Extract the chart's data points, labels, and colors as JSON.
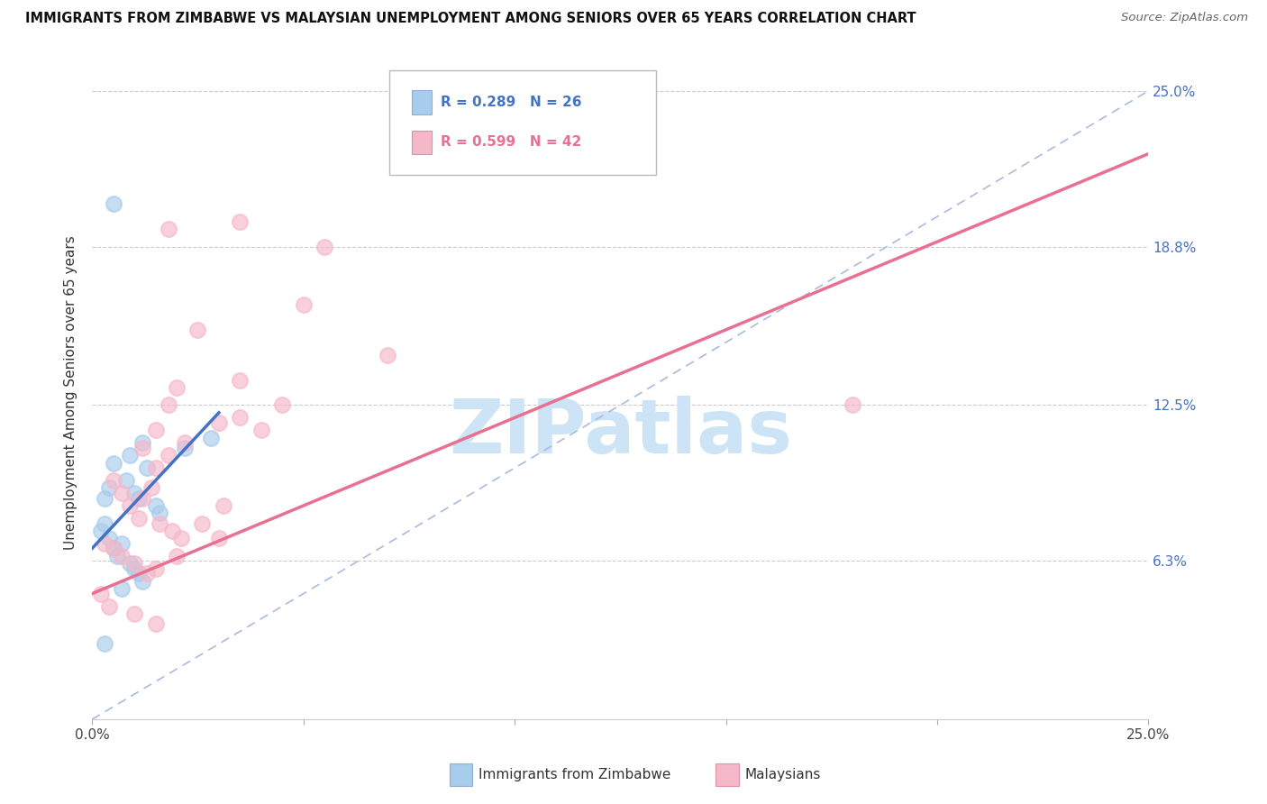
{
  "title": "IMMIGRANTS FROM ZIMBABWE VS MALAYSIAN UNEMPLOYMENT AMONG SENIORS OVER 65 YEARS CORRELATION CHART",
  "source": "Source: ZipAtlas.com",
  "ylabel": "Unemployment Among Seniors over 65 years",
  "ytick_labels": [
    "6.3%",
    "12.5%",
    "18.8%",
    "25.0%"
  ],
  "ytick_values": [
    6.3,
    12.5,
    18.8,
    25.0
  ],
  "legend_label1": "Immigrants from Zimbabwe",
  "legend_label2": "Malaysians",
  "color_blue": "#a8cceb",
  "color_pink": "#f5b8c8",
  "color_blue_line": "#4472c4",
  "color_pink_line": "#e87090",
  "color_diag_line": "#aabbdd",
  "xlim": [
    0,
    25
  ],
  "ylim": [
    0,
    26
  ],
  "blue_points": [
    [
      0.5,
      20.5
    ],
    [
      0.9,
      10.5
    ],
    [
      1.2,
      11.0
    ],
    [
      0.5,
      10.2
    ],
    [
      0.4,
      9.2
    ],
    [
      0.3,
      8.8
    ],
    [
      0.8,
      9.5
    ],
    [
      1.0,
      9.0
    ],
    [
      1.1,
      8.8
    ],
    [
      1.3,
      10.0
    ],
    [
      1.5,
      8.5
    ],
    [
      1.6,
      8.2
    ],
    [
      0.2,
      7.5
    ],
    [
      0.3,
      7.8
    ],
    [
      0.4,
      7.2
    ],
    [
      0.5,
      6.8
    ],
    [
      0.6,
      6.5
    ],
    [
      0.7,
      7.0
    ],
    [
      0.9,
      6.2
    ],
    [
      1.0,
      6.0
    ],
    [
      1.1,
      5.8
    ],
    [
      1.2,
      5.5
    ],
    [
      2.2,
      10.8
    ],
    [
      2.8,
      11.2
    ],
    [
      0.7,
      5.2
    ],
    [
      0.3,
      3.0
    ]
  ],
  "pink_points": [
    [
      3.5,
      19.8
    ],
    [
      1.8,
      19.5
    ],
    [
      5.5,
      18.8
    ],
    [
      5.0,
      16.5
    ],
    [
      7.0,
      14.5
    ],
    [
      2.5,
      15.5
    ],
    [
      3.5,
      13.5
    ],
    [
      2.0,
      13.2
    ],
    [
      1.8,
      12.5
    ],
    [
      1.5,
      11.5
    ],
    [
      1.2,
      10.8
    ],
    [
      1.5,
      10.0
    ],
    [
      1.8,
      10.5
    ],
    [
      2.2,
      11.0
    ],
    [
      3.0,
      11.8
    ],
    [
      3.5,
      12.0
    ],
    [
      4.0,
      11.5
    ],
    [
      4.5,
      12.5
    ],
    [
      0.5,
      9.5
    ],
    [
      0.7,
      9.0
    ],
    [
      0.9,
      8.5
    ],
    [
      1.1,
      8.0
    ],
    [
      1.2,
      8.8
    ],
    [
      1.4,
      9.2
    ],
    [
      1.6,
      7.8
    ],
    [
      1.9,
      7.5
    ],
    [
      2.1,
      7.2
    ],
    [
      2.6,
      7.8
    ],
    [
      3.1,
      8.5
    ],
    [
      0.3,
      7.0
    ],
    [
      0.5,
      6.8
    ],
    [
      0.7,
      6.5
    ],
    [
      1.0,
      6.2
    ],
    [
      1.3,
      5.8
    ],
    [
      1.5,
      6.0
    ],
    [
      2.0,
      6.5
    ],
    [
      3.0,
      7.2
    ],
    [
      18.0,
      12.5
    ],
    [
      0.2,
      5.0
    ],
    [
      0.4,
      4.5
    ],
    [
      1.0,
      4.2
    ],
    [
      1.5,
      3.8
    ]
  ],
  "blue_line_x": [
    0.0,
    3.0
  ],
  "blue_line_y": [
    6.8,
    12.2
  ],
  "pink_line_x": [
    0.0,
    25.0
  ],
  "pink_line_y": [
    5.0,
    22.5
  ],
  "diag_line_x": [
    0,
    25
  ],
  "diag_line_y": [
    0,
    25
  ],
  "watermark_text": "ZIPatlas",
  "watermark_color": "#cce4f5",
  "legend_box_r1": "R = 0.289",
  "legend_box_n1": "N = 26",
  "legend_box_r2": "R = 0.599",
  "legend_box_n2": "N = 42"
}
